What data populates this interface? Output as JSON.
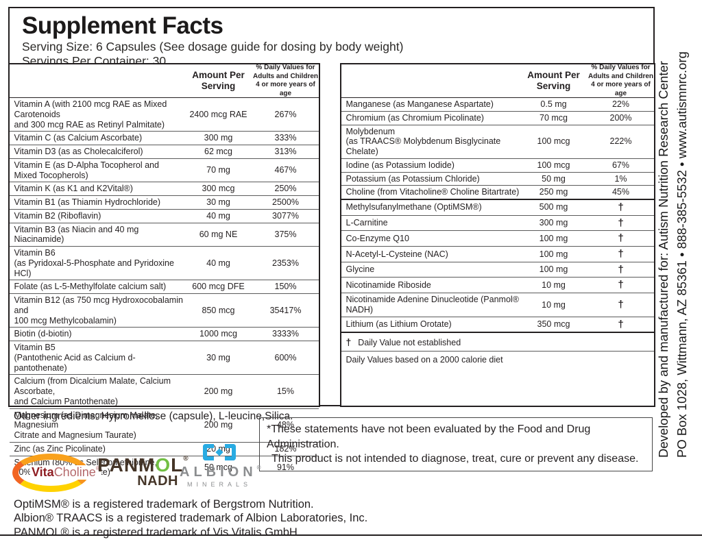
{
  "header": {
    "title": "Supplement Facts",
    "serving_size": "Serving Size: 6 Capsules (See dosage guide for dosing by body weight)",
    "servings_per_container": "Servings Per Container: 30"
  },
  "tables": {
    "amount_header": "Amount Per\nServing",
    "dv_header": "% Daily Values for\nAdults and Children\n4 or more years of age",
    "left_rows": [
      {
        "name": "Vitamin A (with 2100 mcg RAE as Mixed Carotenoids\nand 300 mcg RAE as Retinyl Palmitate)",
        "amount": "2400 mcg RAE",
        "dv": "267%"
      },
      {
        "name": "Vitamin C (as Calcium Ascorbate)",
        "amount": "300 mg",
        "dv": "333%"
      },
      {
        "name": "Vitamin D3 (as as Cholecalciferol)",
        "amount": "62 mcg",
        "dv": "313%"
      },
      {
        "name": "Vitamin E (as D-Alpha Tocopherol and Mixed Tocopherols)",
        "amount": "70 mg",
        "dv": "467%"
      },
      {
        "name": "Vitamin K (as K1 and K2Vital®)",
        "amount": "300 mcg",
        "dv": "250%"
      },
      {
        "name": "Vitamin B1 (as Thiamin Hydrochloride)",
        "amount": "30 mg",
        "dv": "2500%"
      },
      {
        "name": "Vitamin B2 (Riboflavin)",
        "amount": "40 mg",
        "dv": "3077%"
      },
      {
        "name": "Vitamin B3 (as Niacin and 40 mg Niacinamide)",
        "amount": "60 mg NE",
        "dv": "375%"
      },
      {
        "name": "Vitamin B6\n(as Pyridoxal-5-Phosphate and Pyridoxine HCl)",
        "amount": "40 mg",
        "dv": "2353%"
      },
      {
        "name": "Folate (as L-5-Methylfolate calcium salt)",
        "amount": "600 mcg DFE",
        "dv": "150%"
      },
      {
        "name": "Vitamin B12 (as 750 mcg Hydroxocobalamin and\n100 mcg Methylcobalamin)",
        "amount": "850 mcg",
        "dv": "35417%"
      },
      {
        "name": "Biotin (d-biotin)",
        "amount": "1000 mcg",
        "dv": "3333%"
      },
      {
        "name": "Vitamin B5\n(Pantothenic Acid as Calcium d-pantothenate)",
        "amount": "30 mg",
        "dv": "600%"
      },
      {
        "name": "Calcium (from Dicalcium Malate, Calcium Ascorbate,\nand Calcium Pantothenate)",
        "amount": "200 mg",
        "dv": "15%"
      },
      {
        "name": "Magnesium (as Dimagnesium Malate, Magnesium\nCitrate and Magnesium Taurate)",
        "amount": "200 mg",
        "dv": "48%"
      },
      {
        "name": "Zinc (as Zinc Picolinate)",
        "amount": "20 mg",
        "dv": "182%"
      },
      {
        "name": "Selenium (80% as Selenomethionine,\n20% as Sodium Selenite)",
        "amount": "50 mcg",
        "dv": "91%"
      }
    ],
    "right_rows": [
      {
        "name": "Manganese (as Manganese Aspartate)",
        "amount": "0.5 mg",
        "dv": "22%"
      },
      {
        "name": "Chromium (as Chromium Picolinate)",
        "amount": "70 mcg",
        "dv": "200%"
      },
      {
        "name": "Molybdenum\n(as TRAACS® Molybdenum Bisglycinate Chelate)",
        "amount": "100 mcg",
        "dv": "222%"
      },
      {
        "name": "Iodine (as Potassium Iodide)",
        "amount": "100 mcg",
        "dv": "67%"
      },
      {
        "name": "Potassium (as Potassium Chloride)",
        "amount": "50 mg",
        "dv": "1%"
      },
      {
        "name": "Choline (from Vitacholine® Choline Bitartrate)",
        "amount": "250 mg",
        "dv": "45%"
      },
      {
        "name": "Methylsufanylmethane (OptiMSM®)",
        "amount": "500 mg",
        "dv": "†",
        "thick": true
      },
      {
        "name": "L-Carnitine",
        "amount": "300 mg",
        "dv": "†"
      },
      {
        "name": "Co-Enzyme Q10",
        "amount": "100 mg",
        "dv": "†"
      },
      {
        "name": "N-Acetyl-L-Cysteine (NAC)",
        "amount": "100 mg",
        "dv": "†"
      },
      {
        "name": "Glycine",
        "amount": "100 mg",
        "dv": "†"
      },
      {
        "name": "Nicotinamide Riboside",
        "amount": "10 mg",
        "dv": "†"
      },
      {
        "name": "Nicotinamide Adenine Dinucleotide (Panmol® NADH)",
        "amount": "10 mg",
        "dv": "†"
      },
      {
        "name": "Lithium (as Lithium Orotate)",
        "amount": "350 mcg",
        "dv": "†"
      }
    ],
    "dagger_symbol": "†",
    "dagger_footnote": "Daily Value not established",
    "calorie_footnote": "Daily Values based on a 2000 calorie diet"
  },
  "footer": {
    "other_ingredients": "Other ingredients: Hypromellose (capsule), L-leucine,Silica.",
    "disclaimer_line1": "*These statements have not been evaluated by the Food and Drug Administration.",
    "disclaimer_line2": "This product is not intended to diagnose, treat, cure or prevent any disease.",
    "trademark_line1": "OptiMSM® is a registered trademark of Bergstrom Nutrition.",
    "trademark_line2": "Albion® TRAACS is a registered trademark of Albion Laboratories, Inc.",
    "trademark_line3": "PANMOL® is a registered trademark of Vis Vitalis GmbH"
  },
  "logos": {
    "vitacholine": {
      "vita": "Vita",
      "choline": "Choline",
      "reg": "®"
    },
    "panmol": {
      "part1": "PANM",
      "part2": "O",
      "part3": "L",
      "reg": "®",
      "sub": "NADH"
    },
    "albion": {
      "name": "ALBION",
      "reg": "®",
      "sub": "MINERALS"
    }
  },
  "sidebar": {
    "line_inner": "Developed by and manufactured for: Autism Nutrition Research Center",
    "line_outer": "PO Box 1028, Wittmann, AZ 85361  •  888-385-5532  •  www.autismnrc.org"
  },
  "colors": {
    "text": "#231f20",
    "vitacholine_orange": "#f7941d",
    "vitacholine_red": "#8e1d22",
    "panmol_brown": "#453528",
    "panmol_green": "#72bf44",
    "albion_blue": "#29abe2",
    "albion_gray": "#8b8d8f"
  }
}
